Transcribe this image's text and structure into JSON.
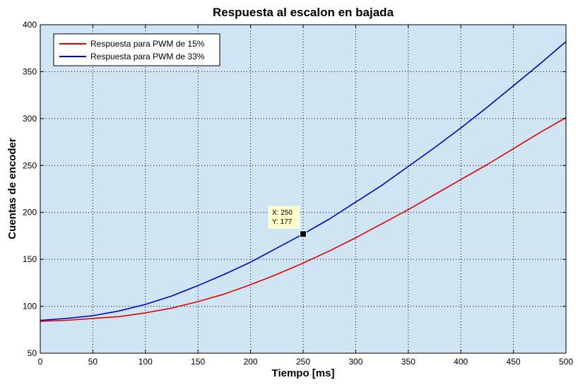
{
  "chart_data": {
    "type": "line",
    "title": "Respuesta al escalon en bajada",
    "xlabel": "Tiempo [ms]",
    "ylabel": "Cuentas de encoder",
    "xlim": [
      0,
      500
    ],
    "ylim": [
      50,
      400
    ],
    "xticks": [
      0,
      50,
      100,
      150,
      200,
      250,
      300,
      350,
      400,
      450,
      500
    ],
    "yticks": [
      50,
      100,
      150,
      200,
      250,
      300,
      350,
      400
    ],
    "grid": true,
    "legend_position": "top-left",
    "background_color": "#cfe5f3",
    "series": [
      {
        "name": "Respuesta para PWM de 15%",
        "color": "#e00000",
        "x": [
          0,
          25,
          50,
          75,
          100,
          125,
          150,
          175,
          200,
          225,
          250,
          275,
          300,
          325,
          350,
          375,
          400,
          425,
          450,
          475,
          500
        ],
        "y": [
          84,
          85,
          87,
          89,
          93,
          98,
          105,
          113,
          123,
          134,
          146,
          159,
          173,
          188,
          203,
          219,
          235,
          251,
          268,
          285,
          301
        ]
      },
      {
        "name": "Respuesta para PWM de 33%",
        "color": "#0000d0",
        "x": [
          0,
          25,
          50,
          75,
          100,
          125,
          150,
          175,
          200,
          225,
          250,
          275,
          300,
          325,
          350,
          375,
          400,
          425,
          450,
          475,
          500
        ],
        "y": [
          85,
          87,
          90,
          95,
          102,
          111,
          122,
          134,
          147,
          162,
          177,
          193,
          211,
          229,
          249,
          269,
          290,
          312,
          335,
          358,
          382
        ]
      }
    ],
    "datatip": {
      "x_text": "X: 250",
      "y_text": "Y: 177",
      "x": 250,
      "y": 177
    }
  }
}
